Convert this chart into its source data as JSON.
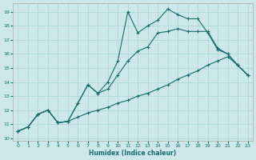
{
  "xlabel": "Humidex (Indice chaleur)",
  "background_color": "#cce8ea",
  "grid_color": "#aad4d6",
  "line_color": "#1a6b6b",
  "xlim": [
    -0.5,
    23.5
  ],
  "ylim": [
    9.8,
    19.6
  ],
  "yticks": [
    10,
    11,
    12,
    13,
    14,
    15,
    16,
    17,
    18,
    19
  ],
  "xticks": [
    0,
    1,
    2,
    3,
    4,
    5,
    6,
    7,
    8,
    9,
    10,
    11,
    12,
    13,
    14,
    15,
    16,
    17,
    18,
    19,
    20,
    21,
    22,
    23
  ],
  "series1_x": [
    0,
    1,
    2,
    3,
    4,
    5,
    6,
    7,
    8,
    9,
    10,
    11,
    12,
    13,
    14,
    15,
    16,
    17,
    18,
    19,
    20,
    21,
    22,
    23
  ],
  "series1_y": [
    10.5,
    10.8,
    11.7,
    12.0,
    11.1,
    11.2,
    11.5,
    11.8,
    12.0,
    12.2,
    12.5,
    12.7,
    13.0,
    13.2,
    13.5,
    13.8,
    14.2,
    14.5,
    14.8,
    15.2,
    15.5,
    15.8,
    15.2,
    14.5
  ],
  "series2_x": [
    0,
    1,
    2,
    3,
    4,
    5,
    6,
    7,
    8,
    9,
    10,
    11,
    12,
    13,
    14,
    15,
    16,
    17,
    18,
    19,
    20,
    21,
    22,
    23
  ],
  "series2_y": [
    10.5,
    10.8,
    11.7,
    12.0,
    11.1,
    11.2,
    12.5,
    13.8,
    13.2,
    13.5,
    14.5,
    15.5,
    16.2,
    16.5,
    17.5,
    17.6,
    17.8,
    17.6,
    17.6,
    17.6,
    16.4,
    16.0,
    15.2,
    14.5
  ],
  "series3_x": [
    0,
    1,
    2,
    3,
    4,
    5,
    6,
    7,
    8,
    9,
    10,
    11,
    12,
    13,
    14,
    15,
    16,
    17,
    18,
    19,
    20,
    21,
    22,
    23
  ],
  "series3_y": [
    10.5,
    10.8,
    11.7,
    12.0,
    11.1,
    11.2,
    12.5,
    13.8,
    13.2,
    14.0,
    15.5,
    19.0,
    17.5,
    18.0,
    18.4,
    19.2,
    18.8,
    18.5,
    18.5,
    17.5,
    16.3,
    16.0,
    15.2,
    14.5
  ]
}
